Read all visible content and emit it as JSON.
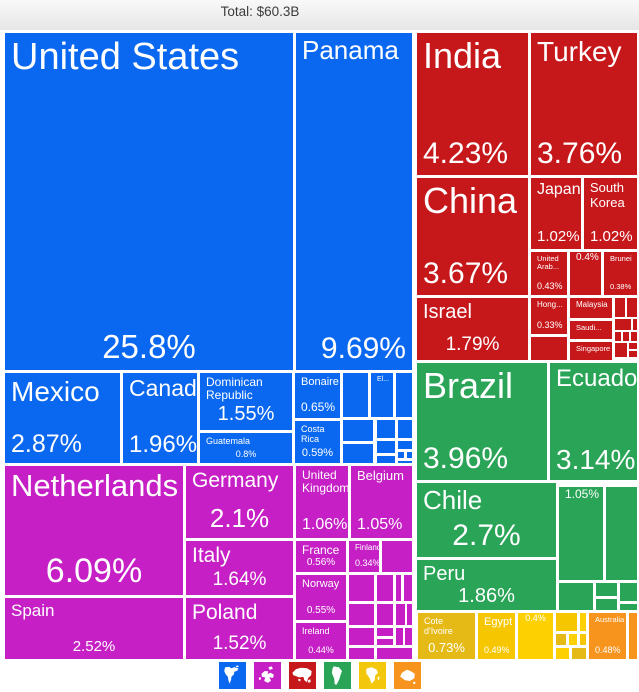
{
  "header": {
    "title": "Total: $60.3B"
  },
  "chart_data": {
    "type": "treemap",
    "title": "Total: $60.3B",
    "total": "$60.3B",
    "legend_position": "bottom",
    "groups": [
      {
        "name": "north-america",
        "color": "#0a68f0",
        "items": [
          {
            "name": "United States",
            "pct": "25.8%",
            "r": [
              5,
              33,
              288,
              337
            ],
            "nf": 38,
            "pf": 33,
            "pa": "center"
          },
          {
            "name": "Panama",
            "pct": "9.69%",
            "r": [
              296,
              33,
              116,
              337
            ],
            "nf": 26,
            "pf": 30,
            "pa": "right"
          },
          {
            "name": "Mexico",
            "pct": "2.87%",
            "r": [
              5,
              373,
              115,
              90
            ],
            "nf": 28,
            "pf": 25,
            "pa": "left"
          },
          {
            "name": "Canada",
            "pct": "1.96%",
            "r": [
              123,
              373,
              74,
              90
            ],
            "nf": 23,
            "pf": 24,
            "pa": "left"
          },
          {
            "name": "Dominican Republic",
            "pct": "1.55%",
            "r": [
              200,
              373,
              92,
              57
            ],
            "nf": 12,
            "pf": 20,
            "pa": "center"
          },
          {
            "name": "Guatemala",
            "pct": "0.8%",
            "r": [
              200,
              433,
              92,
              30
            ],
            "nf": 9,
            "pf": 9,
            "pa": "center"
          },
          {
            "name": "Bonaire",
            "pct": "0.65%",
            "r": [
              295,
              373,
              45,
              45
            ],
            "nf": 11,
            "pf": 12,
            "pa": "center"
          },
          {
            "name": "Costa Rica",
            "pct": "0.59%",
            "r": [
              295,
              421,
              45,
              42
            ],
            "nf": 9,
            "pf": 11,
            "pa": "center"
          },
          {
            "r": [
              343,
              373,
              25,
              44
            ]
          },
          {
            "name": "El...",
            "r": [
              371,
              373,
              22,
              44
            ],
            "nf": 7
          },
          {
            "r": [
              396,
              373,
              16,
              44
            ]
          },
          {
            "r": [
              343,
              420,
              30,
              21
            ]
          },
          {
            "r": [
              377,
              420,
              18,
              18
            ]
          },
          {
            "r": [
              398,
              420,
              14,
              18
            ]
          },
          {
            "r": [
              343,
              444,
              30,
              19
            ]
          },
          {
            "r": [
              377,
              441,
              18,
              12
            ]
          },
          {
            "r": [
              398,
              441,
              14,
              8
            ]
          },
          {
            "r": [
              377,
              456,
              18,
              7
            ]
          },
          {
            "r": [
              398,
              452,
              6,
              6
            ]
          },
          {
            "r": [
              407,
              452,
              5,
              6
            ]
          },
          {
            "r": [
              398,
              461,
              14,
              2
            ]
          }
        ]
      },
      {
        "name": "asia",
        "color": "#c6181b",
        "items": [
          {
            "name": "India",
            "pct": "4.23%",
            "r": [
              417,
              33,
              111,
              142
            ],
            "nf": 36,
            "pf": 30,
            "pa": "left"
          },
          {
            "name": "Turkey",
            "pct": "3.76%",
            "r": [
              531,
              33,
              106,
              142
            ],
            "nf": 28,
            "pf": 30,
            "pa": "left"
          },
          {
            "name": "China",
            "pct": "3.67%",
            "r": [
              417,
              178,
              111,
              117
            ],
            "nf": 36,
            "pf": 30,
            "pa": "left"
          },
          {
            "name": "Japan",
            "pct": "1.02%",
            "r": [
              531,
              178,
              50,
              71
            ],
            "nf": 16,
            "pf": 15,
            "pa": "right"
          },
          {
            "name": "South Korea",
            "pct": "1.02%",
            "r": [
              584,
              178,
              53,
              71
            ],
            "nf": 13,
            "pf": 15,
            "pa": "right"
          },
          {
            "name": "United Arab...",
            "pct": "0.43%",
            "r": [
              531,
              252,
              36,
              43
            ],
            "nf": 7.5,
            "pf": 9,
            "pa": "left"
          },
          {
            "pct": "0.4%",
            "r": [
              570,
              252,
              31,
              43
            ],
            "pf": 10,
            "pa": "center"
          },
          {
            "name": "Brunei",
            "pct": "0.38%",
            "r": [
              604,
              252,
              33,
              43
            ],
            "nf": 7.5,
            "pf": 7.5,
            "pa": "right",
            "na": "right"
          },
          {
            "name": "Israel",
            "pct": "1.79%",
            "r": [
              417,
              298,
              111,
              62
            ],
            "nf": 20,
            "pf": 19,
            "pa": "center"
          },
          {
            "name": "Hong...",
            "pct": "0.33%",
            "r": [
              531,
              298,
              36,
              36
            ],
            "nf": 8,
            "pf": 9,
            "pa": "center"
          },
          {
            "r": [
              531,
              337,
              36,
              23
            ]
          },
          {
            "name": "Malaysia",
            "r": [
              570,
              298,
              42,
              20
            ],
            "nf": 8
          },
          {
            "name": "Saudi...",
            "r": [
              570,
              321,
              42,
              18
            ],
            "nf": 7.5
          },
          {
            "name": "Singapore",
            "r": [
              570,
              342,
              42,
              18
            ],
            "nf": 7.5
          },
          {
            "r": [
              615,
              298,
              10,
              19
            ]
          },
          {
            "r": [
              627,
              298,
              10,
              19
            ]
          },
          {
            "r": [
              615,
              319,
              16,
              11
            ]
          },
          {
            "r": [
              633,
              319,
              4,
              11
            ]
          },
          {
            "r": [
              615,
              332,
              6,
              9
            ]
          },
          {
            "r": [
              623,
              332,
              6,
              9
            ]
          },
          {
            "r": [
              631,
              332,
              6,
              9
            ]
          },
          {
            "r": [
              615,
              343,
              12,
              14
            ]
          },
          {
            "r": [
              629,
              343,
              8,
              6
            ]
          },
          {
            "r": [
              629,
              351,
              8,
              6
            ]
          }
        ]
      },
      {
        "name": "south-america",
        "color": "#2aa457",
        "items": [
          {
            "name": "Brazil",
            "pct": "3.96%",
            "r": [
              417,
              363,
              130,
              117
            ],
            "nf": 36,
            "pf": 30,
            "pa": "left"
          },
          {
            "name": "Ecuador",
            "pct": "3.14%",
            "r": [
              550,
              363,
              87,
              117
            ],
            "nf": 24,
            "pf": 28,
            "pa": "left"
          },
          {
            "name": "Chile",
            "pct": "2.7%",
            "r": [
              417,
              483,
              139,
              74
            ],
            "nf": 26,
            "pf": 30,
            "pa": "center"
          },
          {
            "name": "Peru",
            "pct": "1.86%",
            "r": [
              417,
              560,
              139,
              50
            ],
            "nf": 20,
            "pf": 20,
            "pa": "center"
          },
          {
            "pct": "1.05%",
            "r": [
              559,
              487,
              44,
              93
            ],
            "pf": 12,
            "pa": "center"
          },
          {
            "r": [
              606,
              487,
              31,
              93
            ]
          },
          {
            "r": [
              559,
              583,
              34,
              27
            ]
          },
          {
            "r": [
              596,
              583,
              21,
              13
            ]
          },
          {
            "r": [
              596,
              599,
              21,
              11
            ]
          },
          {
            "r": [
              620,
              583,
              17,
              18
            ]
          },
          {
            "r": [
              620,
              604,
              17,
              6
            ]
          }
        ]
      },
      {
        "name": "europe",
        "color": "#c51fc5",
        "items": [
          {
            "name": "Netherlands",
            "pct": "6.09%",
            "r": [
              5,
              466,
              178,
              129
            ],
            "nf": 31,
            "pf": 34,
            "pa": "center"
          },
          {
            "name": "Spain",
            "pct": "2.52%",
            "r": [
              5,
              598,
              178,
              61
            ],
            "nf": 17,
            "pf": 15,
            "pa": "center"
          },
          {
            "name": "Germany",
            "pct": "2.1%",
            "r": [
              186,
              466,
              107,
              72
            ],
            "nf": 21,
            "pf": 26,
            "pa": "center"
          },
          {
            "name": "Italy",
            "pct": "1.64%",
            "r": [
              186,
              541,
              107,
              54
            ],
            "nf": 21,
            "pf": 19,
            "pa": "center"
          },
          {
            "name": "Poland",
            "pct": "1.52%",
            "r": [
              186,
              598,
              107,
              61
            ],
            "nf": 21,
            "pf": 19,
            "pa": "center"
          },
          {
            "name": "United Kingdom",
            "pct": "1.06%",
            "r": [
              296,
              466,
              52,
              72
            ],
            "nf": 12,
            "pf": 16,
            "pa": "left"
          },
          {
            "name": "Belgium",
            "pct": "1.05%",
            "r": [
              351,
              466,
              61,
              72
            ],
            "nf": 13,
            "pf": 16,
            "pa": "left"
          },
          {
            "name": "France",
            "pct": "0.56%",
            "r": [
              296,
              541,
              50,
              31
            ],
            "nf": 12,
            "pf": 10,
            "pa": "center"
          },
          {
            "name": "Finland",
            "pct": "0.34%",
            "r": [
              349,
              541,
              30,
              31
            ],
            "nf": 8,
            "pf": 9,
            "pa": "left"
          },
          {
            "r": [
              382,
              541,
              30,
              31
            ]
          },
          {
            "name": "Norway",
            "pct": "0.55%",
            "r": [
              296,
              575,
              50,
              45
            ],
            "nf": 11,
            "pf": 10,
            "pa": "center"
          },
          {
            "name": "Ireland",
            "pct": "0.44%",
            "r": [
              296,
              623,
              50,
              36
            ],
            "nf": 9,
            "pf": 9,
            "pa": "center"
          },
          {
            "r": [
              349,
              575,
              25,
              26
            ]
          },
          {
            "r": [
              377,
              575,
              16,
              26
            ]
          },
          {
            "r": [
              396,
              575,
              5,
              26
            ]
          },
          {
            "r": [
              404,
              575,
              8,
              26
            ]
          },
          {
            "r": [
              349,
              604,
              25,
              21
            ]
          },
          {
            "r": [
              377,
              604,
              16,
              21
            ]
          },
          {
            "r": [
              396,
              604,
              9,
              21
            ]
          },
          {
            "r": [
              407,
              604,
              5,
              21
            ]
          },
          {
            "r": [
              349,
              628,
              25,
              17
            ]
          },
          {
            "r": [
              377,
              628,
              16,
              8
            ]
          },
          {
            "r": [
              377,
              639,
              16,
              6
            ]
          },
          {
            "r": [
              396,
              628,
              7,
              17
            ]
          },
          {
            "r": [
              405,
              628,
              7,
              17
            ]
          },
          {
            "r": [
              349,
              648,
              25,
              11
            ]
          },
          {
            "r": [
              377,
              648,
              35,
              11
            ]
          }
        ]
      },
      {
        "name": "africa",
        "color": "#f3c70b",
        "items": [
          {
            "name": "Cote d'Ivoire",
            "pct": "0.73%",
            "r": [
              418,
              613,
              57,
              46
            ],
            "c": "#e6ba16",
            "nf": 9,
            "pf": 13,
            "pa": "center"
          },
          {
            "name": "Egypt",
            "pct": "0.49%",
            "r": [
              478,
              613,
              37,
              46
            ],
            "c": "#f6c701",
            "nf": 11,
            "pf": 9,
            "pa": "left"
          },
          {
            "pct": "0.4%",
            "r": [
              518,
              613,
              35,
              46
            ],
            "c": "#fdd101",
            "pf": 9,
            "pa": "center"
          },
          {
            "r": [
              556,
              613,
              21,
              18
            ],
            "c": "#f6c701"
          },
          {
            "r": [
              580,
              613,
              6,
              18
            ],
            "c": "#fdd101"
          },
          {
            "r": [
              556,
              634,
              10,
              11
            ],
            "c": "#e6ba16"
          },
          {
            "r": [
              569,
              634,
              8,
              11
            ],
            "c": "#fdd101"
          },
          {
            "r": [
              580,
              634,
              6,
              11
            ],
            "c": "#f6c701"
          },
          {
            "r": [
              556,
              648,
              13,
              11
            ],
            "c": "#fdd101"
          },
          {
            "r": [
              572,
              648,
              14,
              11
            ],
            "c": "#e6ba16"
          }
        ]
      },
      {
        "name": "oceania",
        "color": "#f6941e",
        "items": [
          {
            "name": "Australia",
            "pct": "0.48%",
            "r": [
              589,
              613,
              37,
              46
            ],
            "nf": 7.5,
            "pf": 9,
            "pa": "left"
          },
          {
            "r": [
              629,
              613,
              8,
              46
            ]
          }
        ]
      }
    ],
    "legend": [
      {
        "icon": "north-america-icon",
        "color": "#0a68f0"
      },
      {
        "icon": "europe-icon",
        "color": "#c51fc5"
      },
      {
        "icon": "asia-icon",
        "color": "#c6181b"
      },
      {
        "icon": "south-america-icon",
        "color": "#2aa457"
      },
      {
        "icon": "africa-icon",
        "color": "#f3c70b"
      },
      {
        "icon": "oceania-icon",
        "color": "#f6941e"
      }
    ]
  }
}
